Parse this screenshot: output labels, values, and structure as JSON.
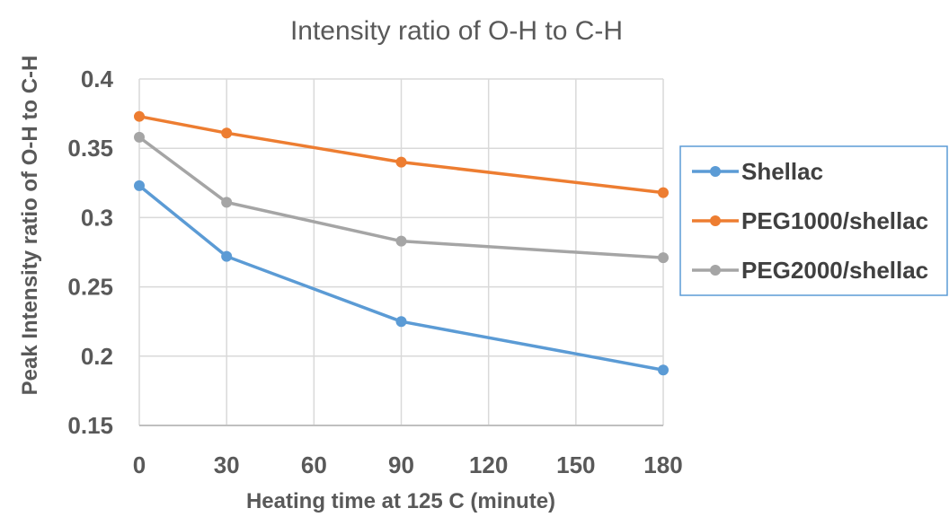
{
  "chart_data": {
    "type": "line",
    "title": "Intensity ratio of O-H to C-H",
    "xlabel": "Heating time at 125 C (minute)",
    "ylabel": "Peak Intensity ratio of O-H to C-H",
    "xlim": [
      0,
      180
    ],
    "ylim": [
      0.15,
      0.4
    ],
    "xticks": [
      0,
      30,
      60,
      90,
      120,
      150,
      180
    ],
    "xtick_labels": [
      "0",
      "30",
      "60",
      "90",
      "120",
      "150",
      "180"
    ],
    "yticks": [
      0.15,
      0.2,
      0.25,
      0.3,
      0.35,
      0.4
    ],
    "ytick_labels": [
      "0.15",
      "0.2",
      "0.25",
      "0.3",
      "0.35",
      "0.4"
    ],
    "grid": true,
    "legend_position": "right",
    "series": [
      {
        "name": "Shellac",
        "color": "#5b9bd5",
        "x": [
          0,
          30,
          90,
          180
        ],
        "values": [
          0.323,
          0.272,
          0.225,
          0.19
        ]
      },
      {
        "name": "PEG1000/shellac",
        "color": "#ed7d31",
        "x": [
          0,
          30,
          90,
          180
        ],
        "values": [
          0.373,
          0.361,
          0.34,
          0.318
        ]
      },
      {
        "name": "PEG2000/shellac",
        "color": "#a5a5a5",
        "x": [
          0,
          30,
          90,
          180
        ],
        "values": [
          0.358,
          0.311,
          0.283,
          0.271
        ]
      }
    ]
  }
}
